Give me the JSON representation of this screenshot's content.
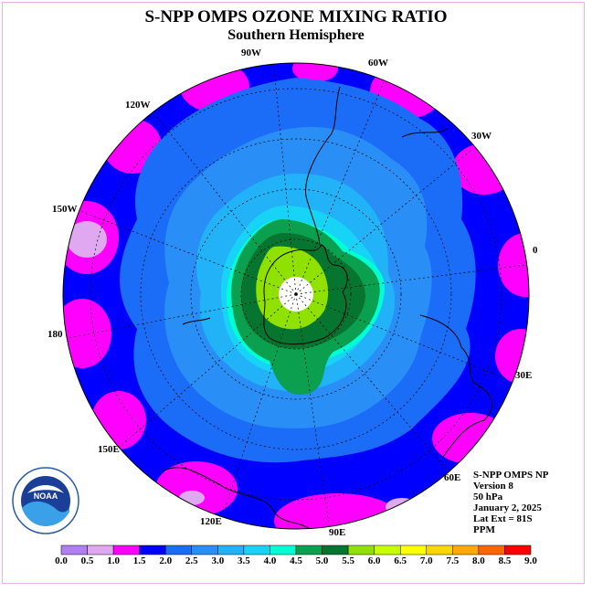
{
  "title": "S-NPP OMPS OZONE MIXING RATIO",
  "subtitle": "Southern Hemisphere",
  "longitude_labels": [
    "90W",
    "60W",
    "30W",
    "0",
    "30E",
    "60E",
    "90E",
    "120E",
    "150E",
    "180",
    "150W",
    "120W"
  ],
  "info": {
    "line1": "S-NPP OMPS NP",
    "line2": "Version 8",
    "line3": "50 hPa",
    "line4": "January 2, 2025",
    "line5": "Lat Ext = 81S",
    "line6": "PPM"
  },
  "logo_text": "NOAA",
  "colorbar": {
    "labels": [
      "0.0",
      "0.5",
      "1.0",
      "1.5",
      "2.0",
      "2.5",
      "3.0",
      "3.5",
      "4.0",
      "4.5",
      "5.0",
      "5.5",
      "6.0",
      "6.5",
      "7.0",
      "7.5",
      "8.0",
      "8.5",
      "9.0"
    ],
    "colors": [
      "#b07ff0",
      "#e0a8f0",
      "#ff00ff",
      "#0000ff",
      "#1b6cf7",
      "#2a8ef7",
      "#22b2f7",
      "#17d4f7",
      "#00ffd4",
      "#0aa050",
      "#057530",
      "#90e000",
      "#c8ff00",
      "#ffff00",
      "#ffd700",
      "#ffaa00",
      "#ff6600",
      "#ff0000",
      "#8b5a3c"
    ]
  }
}
